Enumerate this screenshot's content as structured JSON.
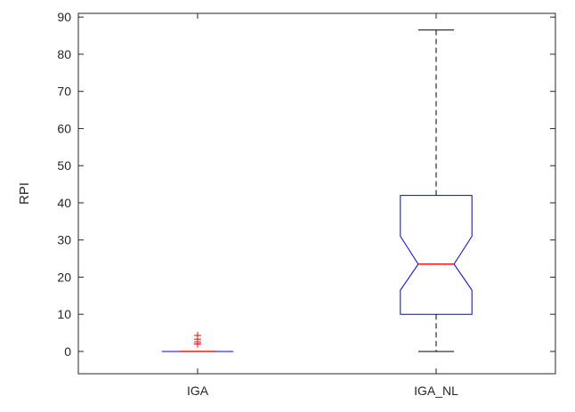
{
  "figure": {
    "background": "#ffffff"
  },
  "chart_data": {
    "type": "boxplot",
    "title": "",
    "xlabel": "",
    "ylabel": "RPI",
    "categories": [
      "IGA",
      "IGA_NL"
    ],
    "ylim": [
      -6,
      91
    ],
    "yticks": [
      0,
      10,
      20,
      30,
      40,
      50,
      60,
      70,
      80,
      90
    ],
    "xlim": [
      0.5,
      2.5
    ],
    "grid": false,
    "legend": "none",
    "layout": {
      "box_width": 0.3,
      "notch_width": 0.15,
      "cap_width": 0.15
    },
    "series": [
      {
        "name": "IGA",
        "x": 1,
        "whislo": 0,
        "q1": 0,
        "med": 0,
        "q3": 0,
        "whishi": 0,
        "notch_lo": 0,
        "notch_hi": 0,
        "outliers": [
          2,
          2.6,
          3.3,
          4.3
        ]
      },
      {
        "name": "IGA_NL",
        "x": 2,
        "whislo": 0,
        "q1": 10,
        "med": 23.5,
        "q3": 42,
        "whishi": 86.5,
        "notch_lo": 16.5,
        "notch_hi": 31,
        "outliers": []
      }
    ],
    "colors": {
      "box": "#0000ff",
      "median": "#ff0000",
      "whisker": "#000000",
      "cap": "#000000",
      "outlier": "#ff0000",
      "axis": "#262626",
      "tick_text": "#262626"
    }
  }
}
